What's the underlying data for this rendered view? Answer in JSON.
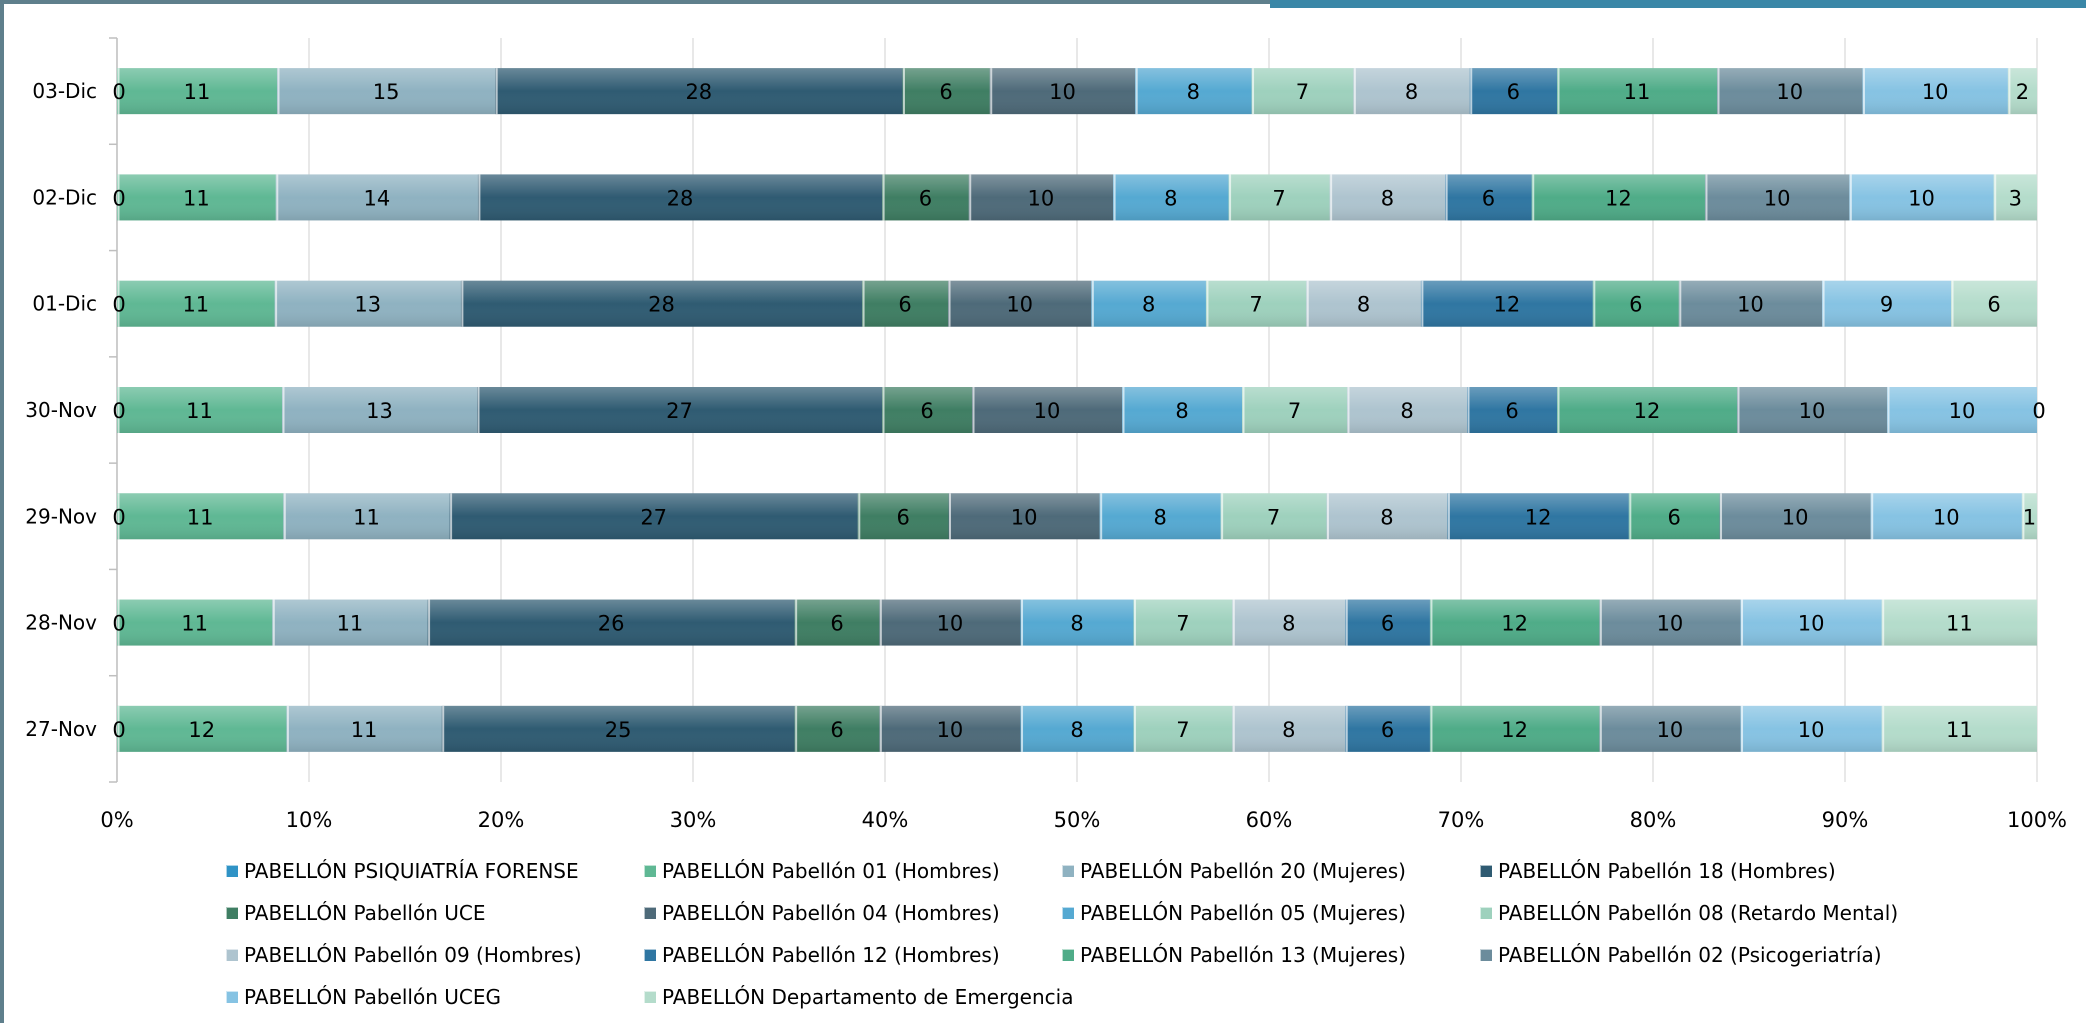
{
  "chart_data": {
    "type": "bar",
    "orientation": "horizontal",
    "stacking": "percent",
    "categories": [
      "03-Dic",
      "02-Dic",
      "01-Dic",
      "30-Nov",
      "29-Nov",
      "28-Nov",
      "27-Nov"
    ],
    "series": [
      {
        "name": "PABELLÓN PSIQUIATRÍA FORENSE",
        "color": "#2f93c6",
        "values": [
          0,
          0,
          0,
          0,
          0,
          0,
          0
        ]
      },
      {
        "name": "PABELLÓN Pabellón 01 (Hombres)",
        "color": "#5fb894",
        "values": [
          11,
          11,
          11,
          11,
          11,
          11,
          12
        ]
      },
      {
        "name": "PABELLÓN Pabellón 20 (Mujeres)",
        "color": "#8fb2c1",
        "values": [
          15,
          14,
          13,
          13,
          11,
          11,
          11
        ]
      },
      {
        "name": "PABELLÓN Pabellón 18 (Hombres)",
        "color": "#2f5b72",
        "values": [
          28,
          28,
          28,
          27,
          27,
          26,
          25
        ]
      },
      {
        "name": "PABELLÓN Pabellón UCE",
        "color": "#3f7e63",
        "values": [
          6,
          6,
          6,
          6,
          6,
          6,
          6
        ]
      },
      {
        "name": "PABELLÓN Pabellón 04 (Hombres)",
        "color": "#4e6a79",
        "values": [
          10,
          10,
          10,
          10,
          10,
          10,
          10
        ]
      },
      {
        "name": "PABELLÓN Pabellón 05 (Mujeres)",
        "color": "#55a9d2",
        "values": [
          8,
          8,
          8,
          8,
          8,
          8,
          8
        ]
      },
      {
        "name": "PABELLÓN Pabellón 08 (Retardo Mental)",
        "color": "#9ed1bd",
        "values": [
          7,
          7,
          7,
          7,
          7,
          7,
          7
        ]
      },
      {
        "name": "PABELLÓN Pabellón 09 (Hombres)",
        "color": "#aec4cf",
        "values": [
          8,
          8,
          8,
          8,
          8,
          8,
          8
        ]
      },
      {
        "name": "PABELLÓN Pabellón 12 (Hombres)",
        "color": "#2f76a2",
        "values": [
          6,
          6,
          12,
          6,
          12,
          6,
          6
        ]
      },
      {
        "name": "PABELLÓN Pabellón 13 (Mujeres)",
        "color": "#4fac88",
        "values": [
          11,
          12,
          6,
          12,
          6,
          12,
          12
        ]
      },
      {
        "name": "PABELLÓN Pabellón 02 (Psicogeriatría)",
        "color": "#6c8c9c",
        "values": [
          10,
          10,
          10,
          10,
          10,
          10,
          10
        ]
      },
      {
        "name": "PABELLÓN Pabellón UCEG",
        "color": "#86c3e3",
        "values": [
          10,
          10,
          9,
          10,
          10,
          10,
          10
        ]
      },
      {
        "name": "PABELLÓN Departamento de Emergencia",
        "color": "#b4dccb",
        "values": [
          2,
          3,
          6,
          0,
          1,
          11,
          11
        ]
      }
    ],
    "xaxis": {
      "ticks": [
        "0%",
        "10%",
        "20%",
        "30%",
        "40%",
        "50%",
        "60%",
        "70%",
        "80%",
        "90%",
        "100%"
      ],
      "range": [
        0,
        100
      ]
    },
    "grid": "vertical",
    "legend_position": "bottom",
    "data_labels": true,
    "title": "",
    "xlabel": "",
    "ylabel": ""
  }
}
